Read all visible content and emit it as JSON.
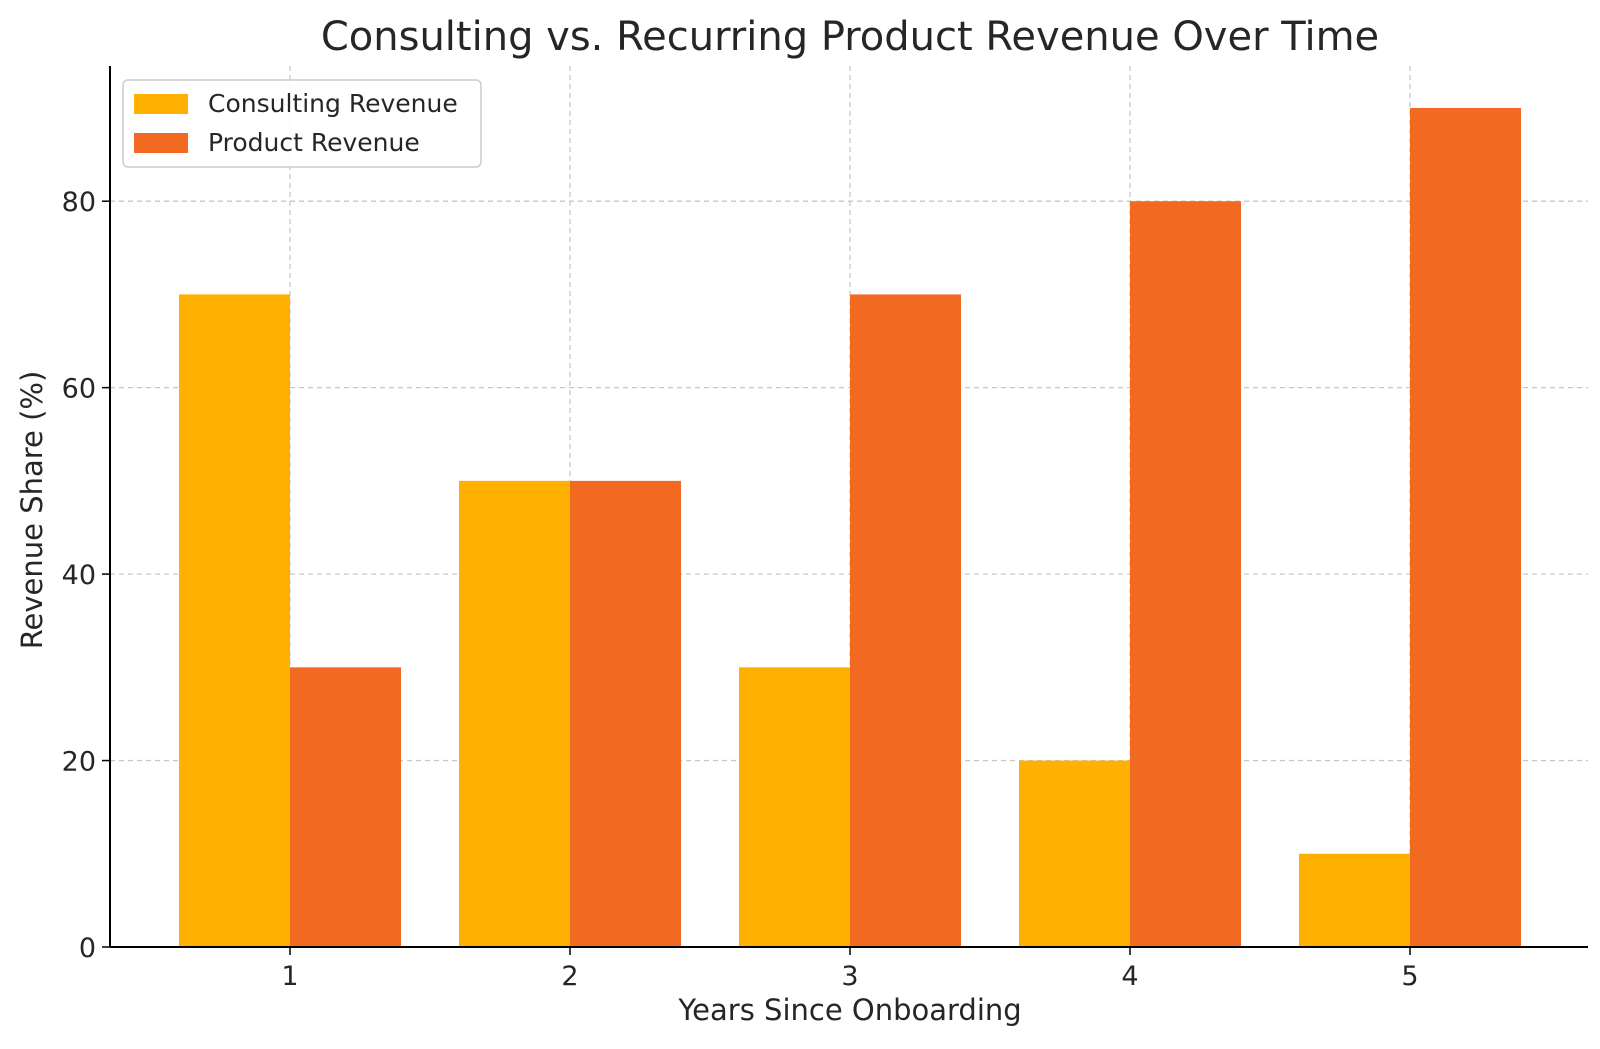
{
  "chart_data": {
    "type": "bar",
    "title": "Consulting vs. Recurring Product Revenue Over Time",
    "xlabel": "Years Since Onboarding",
    "ylabel": "Revenue Share (%)",
    "categories": [
      "1",
      "2",
      "3",
      "4",
      "5"
    ],
    "yticks": [
      "0",
      "20",
      "40",
      "60",
      "80"
    ],
    "ylim": [
      0,
      94.5
    ],
    "grid": true,
    "legend_position": "top-left",
    "series": [
      {
        "name": "Consulting Revenue",
        "color": "#FFB000",
        "values": [
          70,
          50,
          30,
          20,
          10
        ]
      },
      {
        "name": "Product Revenue",
        "color": "#F26A22",
        "values": [
          30,
          50,
          70,
          80,
          90
        ]
      }
    ]
  }
}
